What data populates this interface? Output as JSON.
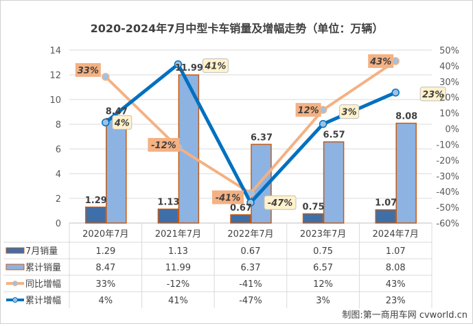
{
  "chart_data": {
    "type": "bar+line",
    "title": "2020-2024年7月中型卡车销量及增幅走势（单位：万辆）",
    "categories": [
      "2020年7月",
      "2021年7月",
      "2022年7月",
      "2023年7月",
      "2024年7月"
    ],
    "left_axis": {
      "ylim": [
        0,
        14
      ],
      "ticks": [
        "0",
        "2",
        "4",
        "6",
        "8",
        "10",
        "12",
        "14"
      ]
    },
    "right_axis": {
      "ylim": [
        -60,
        50
      ],
      "ticks": [
        "-60%",
        "-50%",
        "-40%",
        "-30%",
        "-20%",
        "-10%",
        "0%",
        "10%",
        "20%",
        "30%",
        "40%",
        "50%"
      ]
    },
    "grid": true,
    "legend": "data-table",
    "series": [
      {
        "name": "7月销量",
        "kind": "bar",
        "axis": "left",
        "values": [
          1.29,
          1.13,
          0.67,
          0.75,
          1.07
        ],
        "labels": [
          "1.29",
          "1.13",
          "0.67",
          "0.75",
          "1.07"
        ],
        "color": "#3f6fa8",
        "border": "#c55a11"
      },
      {
        "name": "累计销量",
        "kind": "bar",
        "axis": "left",
        "values": [
          8.47,
          11.99,
          6.37,
          6.57,
          8.08
        ],
        "labels": [
          "8.47",
          "11.99",
          "6.37",
          "6.57",
          "8.08"
        ],
        "color": "#8db3e2",
        "border": "#c55a11"
      },
      {
        "name": "同比增幅",
        "kind": "line",
        "axis": "right",
        "values": [
          33,
          -12,
          -41,
          12,
          43
        ],
        "labels": [
          "33%",
          "-12%",
          "-41%",
          "12%",
          "43%"
        ],
        "color": "#f4b183",
        "label_bg": "#f4b183"
      },
      {
        "name": "累计增幅",
        "kind": "line",
        "axis": "right",
        "values": [
          4,
          41,
          -47,
          3,
          23
        ],
        "labels": [
          "4%",
          "41%",
          "-47%",
          "3%",
          "23%"
        ],
        "color": "#0070c0",
        "label_bg": "#fff2cc"
      }
    ]
  },
  "source": "制图:第一商用车网 cvworld.cn"
}
